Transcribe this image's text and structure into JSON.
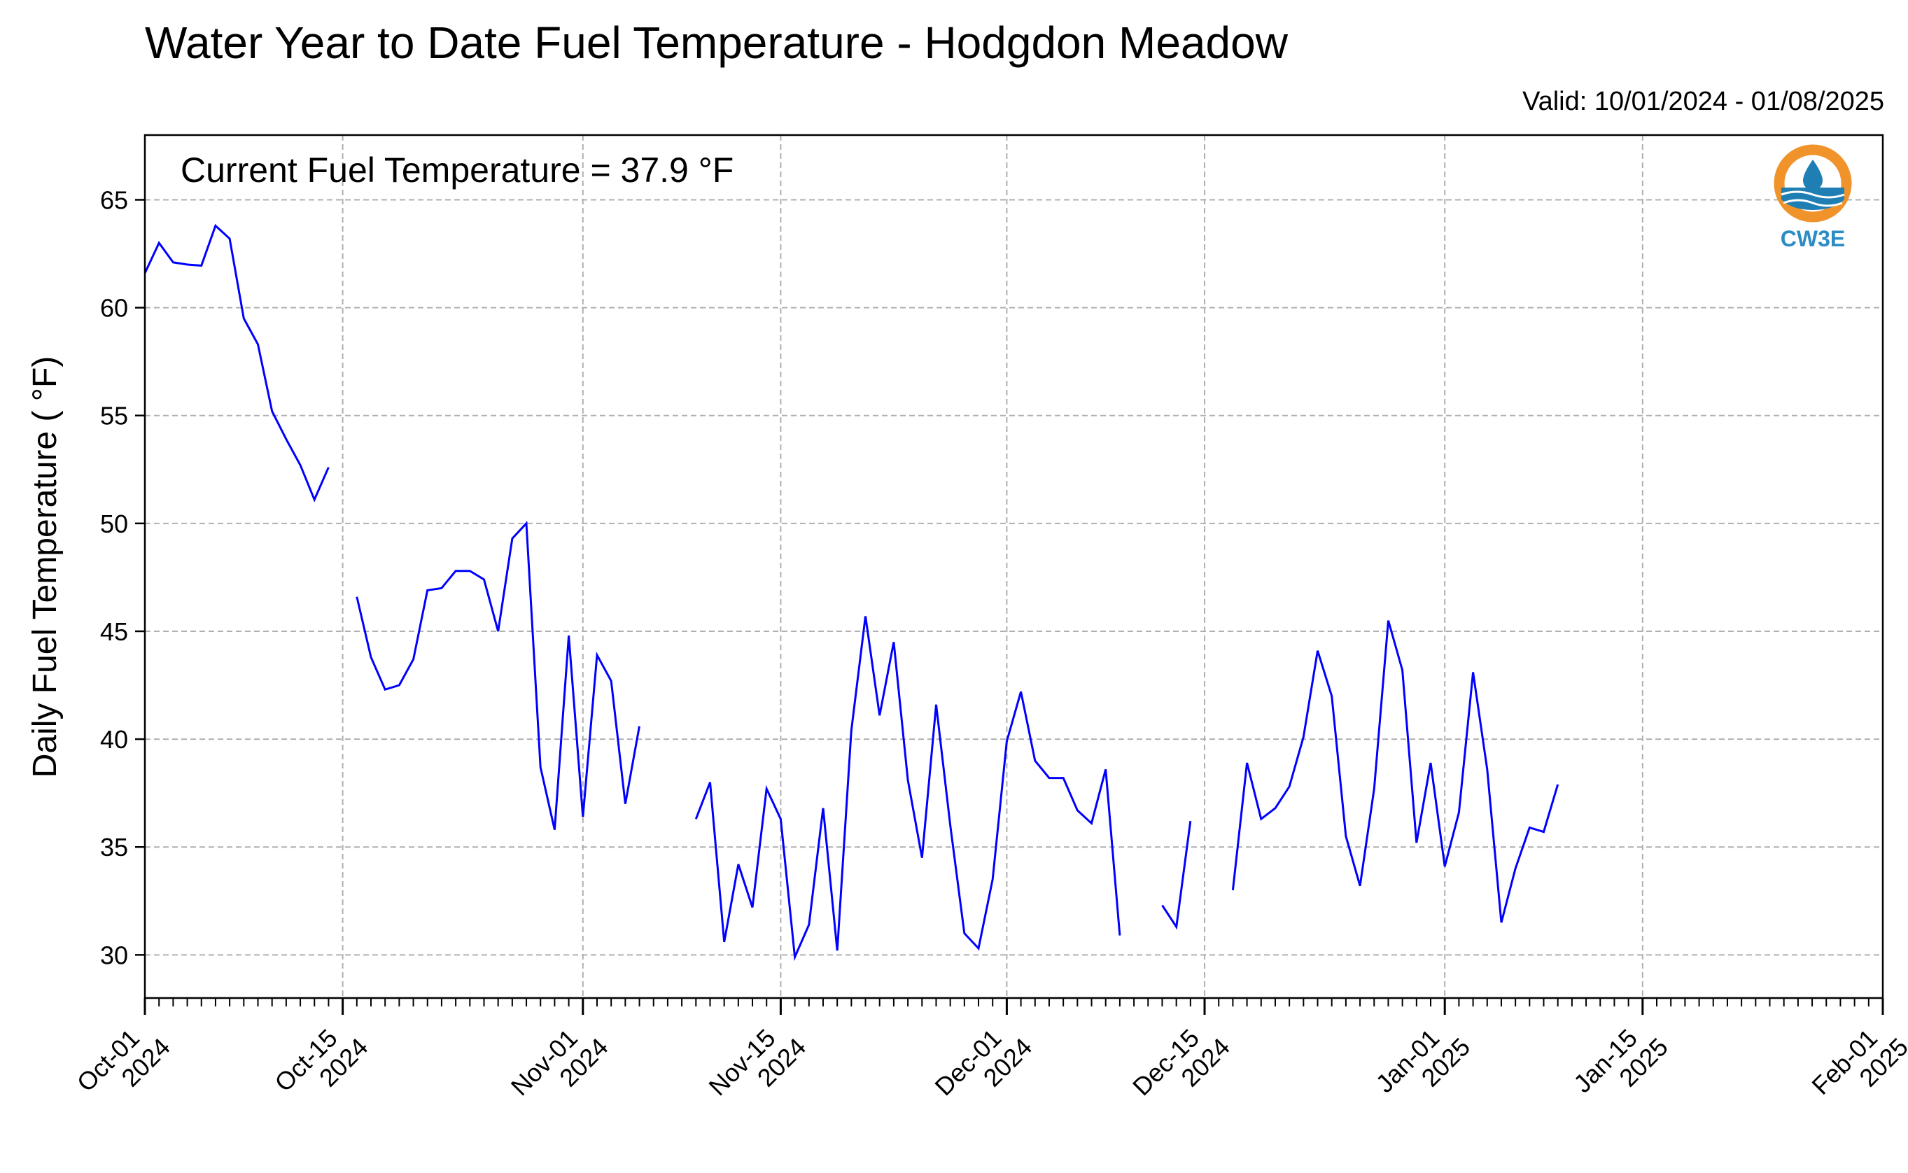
{
  "title": "Water Year to Date Fuel Temperature - Hodgdon Meadow",
  "valid_text": "Valid: 10/01/2024 - 01/08/2025",
  "annotation": "Current Fuel Temperature = 37.9  °F",
  "logo": {
    "text": "CW3E",
    "colors": {
      "ring": "#f0932b",
      "wave": "#1f7fb5",
      "text": "#2c8cc4"
    }
  },
  "chart_data": {
    "type": "line",
    "title": "Water Year to Date Fuel Temperature - Hodgdon Meadow",
    "xlabel": "",
    "ylabel": "Daily Fuel Temperature ( °F)",
    "ylim": [
      28,
      68
    ],
    "yticks": [
      30,
      35,
      40,
      45,
      50,
      55,
      60,
      65
    ],
    "xlim": [
      "2024-10-01",
      "2025-02-01"
    ],
    "xticks": [
      {
        "date": "2024-10-01",
        "line1": "Oct-01",
        "line2": "2024"
      },
      {
        "date": "2024-10-15",
        "line1": "Oct-15",
        "line2": "2024"
      },
      {
        "date": "2024-11-01",
        "line1": "Nov-01",
        "line2": "2024"
      },
      {
        "date": "2024-11-15",
        "line1": "Nov-15",
        "line2": "2024"
      },
      {
        "date": "2024-12-01",
        "line1": "Dec-01",
        "line2": "2024"
      },
      {
        "date": "2024-12-15",
        "line1": "Dec-15",
        "line2": "2024"
      },
      {
        "date": "2025-01-01",
        "line1": "Jan-01",
        "line2": "2025"
      },
      {
        "date": "2025-01-15",
        "line1": "Jan-15",
        "line2": "2025"
      },
      {
        "date": "2025-02-01",
        "line1": "Feb-01",
        "line2": "2025"
      }
    ],
    "grid": true,
    "line_color": "#0000ff",
    "series": [
      {
        "values": [
          [
            "2024-10-01",
            61.6
          ],
          [
            "2024-10-02",
            63.0
          ],
          [
            "2024-10-03",
            62.1
          ],
          [
            "2024-10-04",
            62.0
          ],
          [
            "2024-10-05",
            61.95
          ],
          [
            "2024-10-06",
            63.8
          ],
          [
            "2024-10-07",
            63.2
          ],
          [
            "2024-10-08",
            59.5
          ],
          [
            "2024-10-09",
            58.3
          ],
          [
            "2024-10-10",
            55.2
          ],
          [
            "2024-10-11",
            53.9
          ],
          [
            "2024-10-12",
            52.7
          ],
          [
            "2024-10-13",
            51.1
          ],
          [
            "2024-10-14",
            52.6
          ],
          [
            "2024-10-15",
            null
          ],
          [
            "2024-10-16",
            46.6
          ],
          [
            "2024-10-17",
            43.8
          ],
          [
            "2024-10-18",
            42.3
          ],
          [
            "2024-10-19",
            42.5
          ],
          [
            "2024-10-20",
            43.7
          ],
          [
            "2024-10-21",
            46.9
          ],
          [
            "2024-10-22",
            47.0
          ],
          [
            "2024-10-23",
            47.8
          ],
          [
            "2024-10-24",
            47.8
          ],
          [
            "2024-10-25",
            47.4
          ],
          [
            "2024-10-26",
            45.0
          ],
          [
            "2024-10-27",
            49.3
          ],
          [
            "2024-10-28",
            50.0
          ],
          [
            "2024-10-29",
            38.7
          ],
          [
            "2024-10-30",
            35.8
          ],
          [
            "2024-10-31",
            44.8
          ],
          [
            "2024-11-01",
            36.4
          ],
          [
            "2024-11-02",
            43.9
          ],
          [
            "2024-11-03",
            42.7
          ],
          [
            "2024-11-04",
            37.0
          ],
          [
            "2024-11-05",
            40.6
          ],
          [
            "2024-11-06",
            null
          ],
          [
            "2024-11-07",
            null
          ],
          [
            "2024-11-08",
            null
          ],
          [
            "2024-11-09",
            36.3
          ],
          [
            "2024-11-10",
            38.0
          ],
          [
            "2024-11-11",
            30.6
          ],
          [
            "2024-11-12",
            34.2
          ],
          [
            "2024-11-13",
            32.2
          ],
          [
            "2024-11-14",
            37.7
          ],
          [
            "2024-11-15",
            36.3
          ],
          [
            "2024-11-16",
            29.9
          ],
          [
            "2024-11-17",
            31.4
          ],
          [
            "2024-11-18",
            36.8
          ],
          [
            "2024-11-19",
            30.2
          ],
          [
            "2024-11-20",
            40.4
          ],
          [
            "2024-11-21",
            45.7
          ],
          [
            "2024-11-22",
            41.1
          ],
          [
            "2024-11-23",
            44.5
          ],
          [
            "2024-11-24",
            38.1
          ],
          [
            "2024-11-25",
            34.5
          ],
          [
            "2024-11-26",
            41.6
          ],
          [
            "2024-11-27",
            36.0
          ],
          [
            "2024-11-28",
            31.0
          ],
          [
            "2024-11-29",
            30.3
          ],
          [
            "2024-11-30",
            33.5
          ],
          [
            "2024-12-01",
            39.9
          ],
          [
            "2024-12-02",
            42.2
          ],
          [
            "2024-12-03",
            39.0
          ],
          [
            "2024-12-04",
            38.2
          ],
          [
            "2024-12-05",
            38.2
          ],
          [
            "2024-12-06",
            36.7
          ],
          [
            "2024-12-07",
            36.1
          ],
          [
            "2024-12-08",
            38.6
          ],
          [
            "2024-12-09",
            30.9
          ],
          [
            "2024-12-10",
            null
          ],
          [
            "2024-12-11",
            null
          ],
          [
            "2024-12-12",
            32.3
          ],
          [
            "2024-12-13",
            31.3
          ],
          [
            "2024-12-14",
            36.2
          ],
          [
            "2024-12-15",
            null
          ],
          [
            "2024-12-16",
            null
          ],
          [
            "2024-12-17",
            33.0
          ],
          [
            "2024-12-18",
            38.9
          ],
          [
            "2024-12-19",
            36.3
          ],
          [
            "2024-12-20",
            36.8
          ],
          [
            "2024-12-21",
            37.8
          ],
          [
            "2024-12-22",
            40.1
          ],
          [
            "2024-12-23",
            44.1
          ],
          [
            "2024-12-24",
            42.0
          ],
          [
            "2024-12-25",
            35.5
          ],
          [
            "2024-12-26",
            33.2
          ],
          [
            "2024-12-27",
            37.7
          ],
          [
            "2024-12-28",
            45.5
          ],
          [
            "2024-12-29",
            43.2
          ],
          [
            "2024-12-30",
            35.2
          ],
          [
            "2024-12-31",
            38.9
          ],
          [
            "2025-01-01",
            34.1
          ],
          [
            "2025-01-02",
            36.6
          ],
          [
            "2025-01-03",
            43.1
          ],
          [
            "2025-01-04",
            38.6
          ],
          [
            "2025-01-05",
            31.5
          ],
          [
            "2025-01-06",
            34.0
          ],
          [
            "2025-01-07",
            35.9
          ],
          [
            "2025-01-08",
            35.7
          ],
          [
            "2025-01-09",
            37.9
          ]
        ]
      }
    ]
  }
}
